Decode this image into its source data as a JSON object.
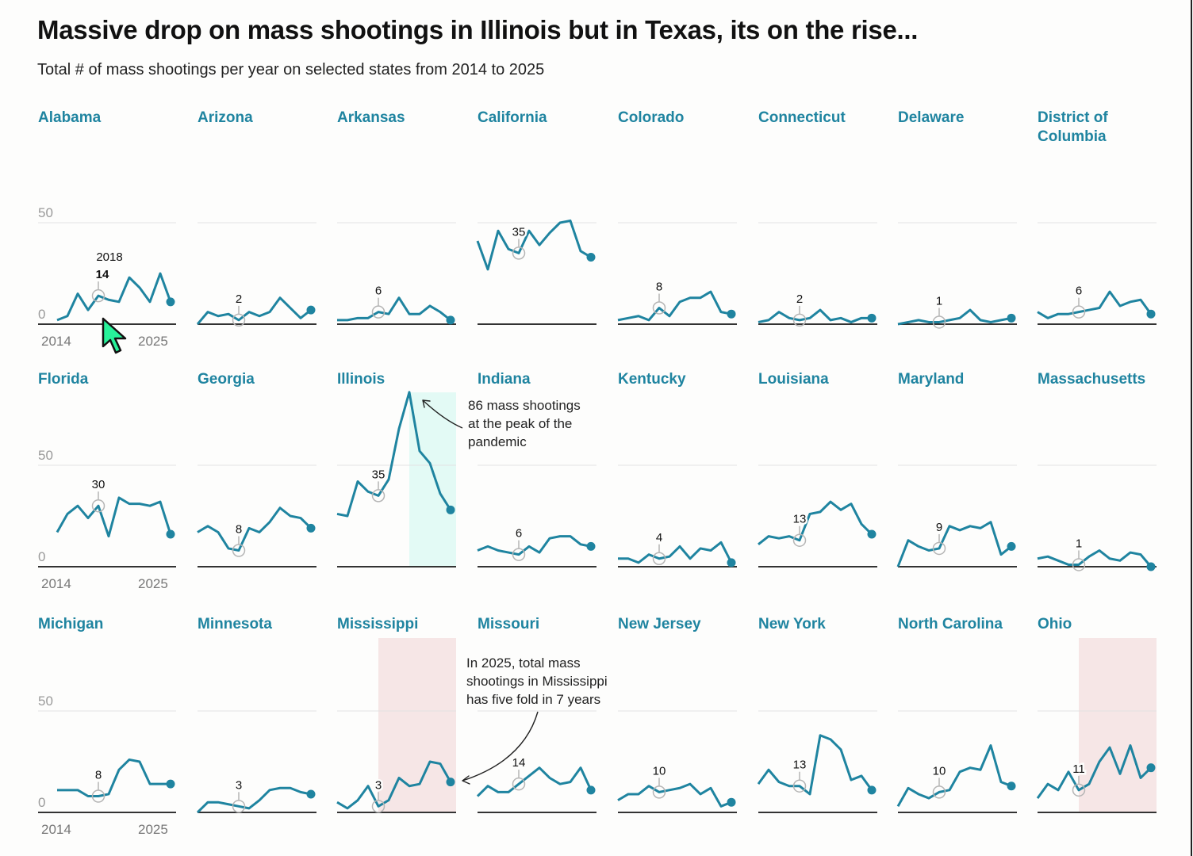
{
  "title": "Massive drop on mass shootings in Illinois but in Texas, its on the rise...",
  "subtitle": "Total # of mass shootings per year on selected states from 2014 to 2025",
  "colors": {
    "line": "#1f84a0",
    "label": "#1f84a0",
    "highlight_teal": "#e3faf5",
    "highlight_pink": "#f6e6e6",
    "cursor": "#27f29a"
  },
  "chart_data": {
    "type": "line",
    "title": "Massive drop on mass shootings in Illinois but in Texas, its on the rise...",
    "subtitle": "Total # of mass shootings per year on selected states from 2014 to 2025",
    "layout": "small-multiples",
    "x": [
      2014,
      2015,
      2016,
      2017,
      2018,
      2019,
      2020,
      2021,
      2022,
      2023,
      2024,
      2025
    ],
    "xlabel": "",
    "ylabel": "",
    "x_tick_labels": [
      "2014",
      "2025"
    ],
    "y_tick_labels": [
      "0",
      "50"
    ],
    "ylim": [
      0,
      50
    ],
    "grid": true,
    "highlight_year": 2018,
    "highlight_year_label": "2018",
    "series": [
      {
        "name": "Alabama",
        "values": [
          2,
          4,
          15,
          7,
          14,
          12,
          11,
          23,
          18,
          11,
          25,
          11
        ],
        "label": "14"
      },
      {
        "name": "Arizona",
        "values": [
          0,
          6,
          4,
          5,
          2,
          6,
          4,
          6,
          13,
          8,
          3,
          7
        ],
        "label": "2"
      },
      {
        "name": "Arkansas",
        "values": [
          2,
          2,
          3,
          3,
          6,
          5,
          13,
          5,
          5,
          9,
          6,
          2
        ],
        "label": "6"
      },
      {
        "name": "California",
        "values": [
          41,
          27,
          46,
          37,
          35,
          46,
          39,
          45,
          50,
          51,
          36,
          33
        ],
        "label": "35"
      },
      {
        "name": "Colorado",
        "values": [
          2,
          3,
          4,
          2,
          8,
          4,
          11,
          13,
          13,
          16,
          6,
          5
        ],
        "label": "8"
      },
      {
        "name": "Connecticut",
        "values": [
          1,
          2,
          6,
          3,
          2,
          3,
          7,
          2,
          3,
          1,
          3,
          3
        ],
        "label": "2"
      },
      {
        "name": "Delaware",
        "values": [
          0,
          1,
          2,
          1,
          1,
          2,
          3,
          7,
          2,
          1,
          2,
          3
        ],
        "label": "1"
      },
      {
        "name": "District of Columbia",
        "name_lines": [
          "District of",
          "Columbia"
        ],
        "values": [
          6,
          3,
          5,
          5,
          6,
          7,
          8,
          16,
          9,
          11,
          12,
          5
        ],
        "label": "6"
      },
      {
        "name": "Florida",
        "values": [
          17,
          26,
          30,
          24,
          30,
          15,
          34,
          31,
          31,
          30,
          32,
          16
        ],
        "label": "30"
      },
      {
        "name": "Georgia",
        "values": [
          17,
          20,
          17,
          9,
          8,
          19,
          17,
          22,
          29,
          25,
          24,
          19
        ],
        "label": "8"
      },
      {
        "name": "Illinois",
        "values": [
          26,
          25,
          42,
          37,
          35,
          43,
          68,
          86,
          57,
          51,
          36,
          28
        ],
        "label": "35",
        "highlight_range": [
          2021,
          2025
        ],
        "highlight_color": "teal"
      },
      {
        "name": "Indiana",
        "values": [
          8,
          10,
          8,
          7,
          6,
          10,
          7,
          14,
          15,
          15,
          11,
          10
        ],
        "label": "6"
      },
      {
        "name": "Kentucky",
        "values": [
          4,
          4,
          2,
          6,
          4,
          5,
          10,
          4,
          9,
          8,
          12,
          2
        ],
        "label": "4"
      },
      {
        "name": "Louisiana",
        "values": [
          11,
          15,
          14,
          15,
          13,
          26,
          27,
          32,
          28,
          31,
          21,
          16
        ],
        "label": "13"
      },
      {
        "name": "Maryland",
        "values": [
          0,
          13,
          10,
          8,
          9,
          20,
          18,
          20,
          19,
          22,
          6,
          10
        ],
        "label": "9"
      },
      {
        "name": "Massachusetts",
        "values": [
          4,
          5,
          3,
          1,
          1,
          5,
          8,
          4,
          3,
          7,
          6,
          0
        ],
        "label": "1"
      },
      {
        "name": "Michigan",
        "values": [
          11,
          11,
          11,
          8,
          8,
          9,
          21,
          26,
          25,
          14,
          14,
          14
        ],
        "label": "8"
      },
      {
        "name": "Minnesota",
        "values": [
          0,
          5,
          5,
          4,
          3,
          2,
          6,
          11,
          12,
          12,
          10,
          9
        ],
        "label": "3"
      },
      {
        "name": "Mississippi",
        "values": [
          5,
          2,
          6,
          13,
          3,
          6,
          17,
          13,
          14,
          25,
          24,
          15
        ],
        "label": "3",
        "highlight_range": [
          2018,
          2025
        ],
        "highlight_color": "pink"
      },
      {
        "name": "Missouri",
        "values": [
          8,
          13,
          10,
          10,
          14,
          18,
          22,
          17,
          14,
          15,
          22,
          11
        ],
        "label": "14"
      },
      {
        "name": "New Jersey",
        "values": [
          6,
          9,
          9,
          13,
          10,
          11,
          12,
          14,
          9,
          12,
          3,
          5
        ],
        "label": "10"
      },
      {
        "name": "New York",
        "values": [
          14,
          21,
          15,
          13,
          13,
          9,
          38,
          36,
          31,
          16,
          18,
          11
        ],
        "label": "13"
      },
      {
        "name": "North Carolina",
        "values": [
          3,
          12,
          9,
          7,
          10,
          11,
          20,
          22,
          21,
          33,
          15,
          13
        ],
        "label": "10"
      },
      {
        "name": "Ohio",
        "values": [
          7,
          14,
          11,
          20,
          11,
          14,
          25,
          32,
          19,
          33,
          17,
          22
        ],
        "label": "11",
        "highlight_range": [
          2018,
          2025
        ],
        "highlight_color": "pink"
      }
    ],
    "annotations": [
      {
        "state": "Illinois",
        "year": 2021,
        "lines": [
          "86 mass shootings",
          "at the peak of the",
          "pandemic"
        ]
      },
      {
        "state": "Mississippi",
        "year": 2025,
        "lines": [
          "In 2025, total mass",
          "shootings in Mississippi",
          "has five fold in 7 years"
        ]
      }
    ]
  }
}
